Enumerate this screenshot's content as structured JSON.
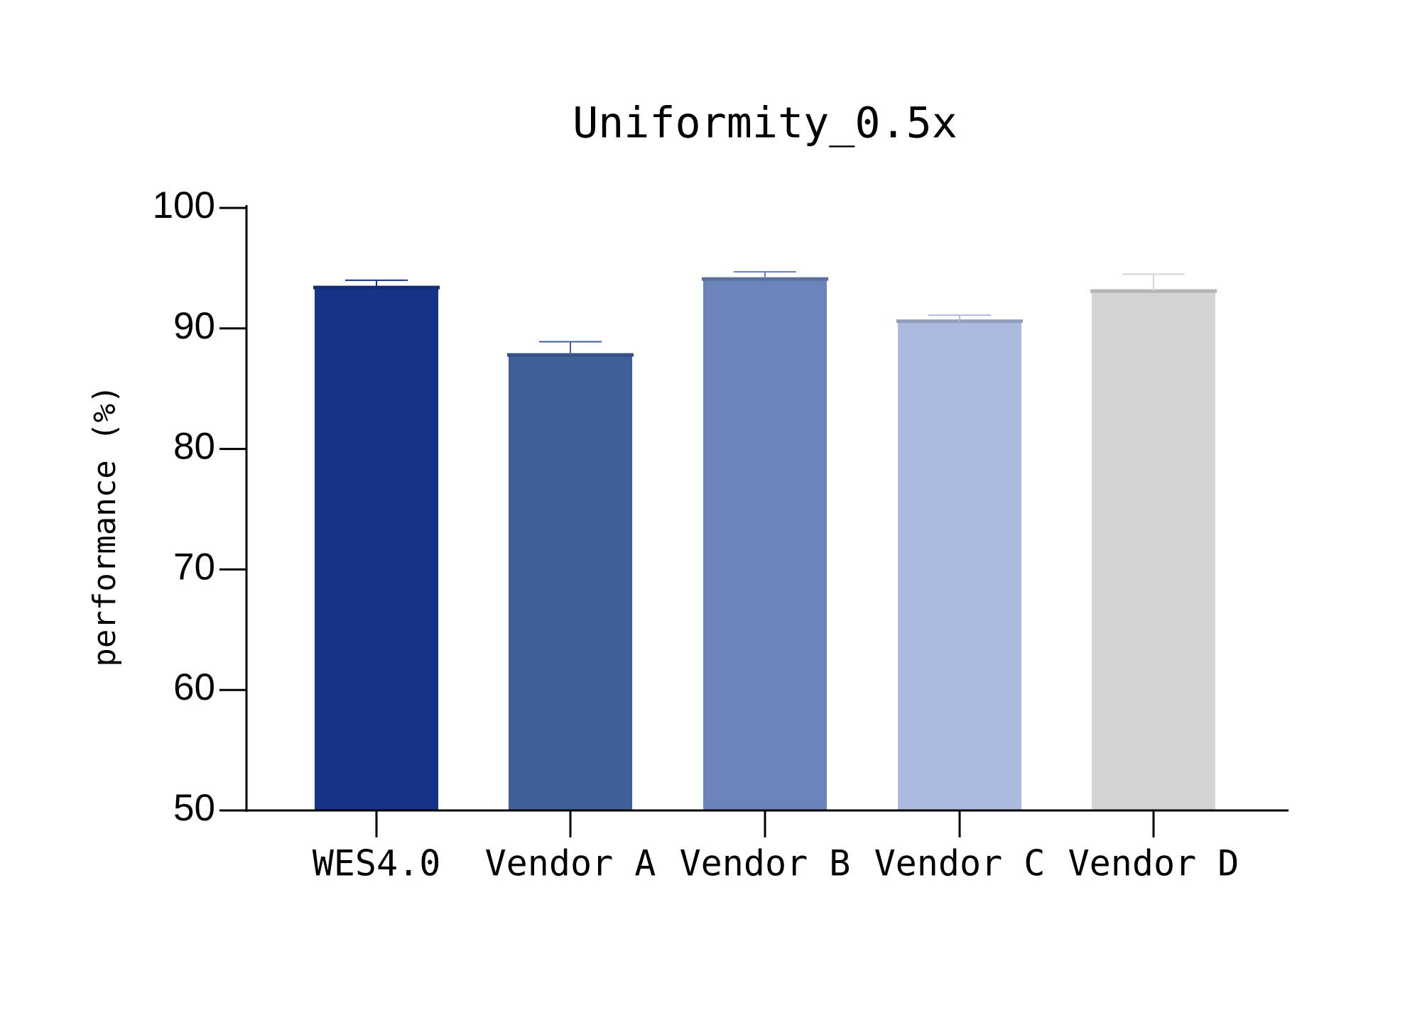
{
  "chart_data": {
    "type": "bar",
    "title": "Uniformity_0.5x",
    "y_label": "performance (%)",
    "categories": [
      "WES4.0",
      "Vendor A",
      "Vendor B",
      "Vendor C",
      "Vendor D"
    ],
    "values": [
      93.4,
      87.8,
      94.1,
      90.6,
      93.1
    ],
    "errors": [
      0.6,
      1.1,
      0.6,
      0.5,
      1.4
    ],
    "colors": [
      "#163487",
      "#3f5f9a",
      "#6a84ba",
      "#adbadf",
      "#d4d4d4"
    ],
    "ylim": [
      50,
      100
    ],
    "yticks": [
      50,
      60,
      70,
      80,
      90,
      100
    ],
    "grid": false
  }
}
